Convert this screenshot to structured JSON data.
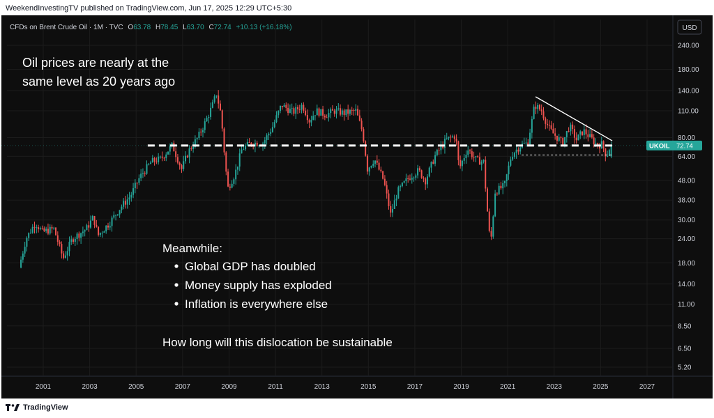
{
  "publisher_line": "WeekendInvestingTV published on TradingView.com, Jun 17, 2025 12:29 UTC+5:30",
  "footer": {
    "brand": "TradingView"
  },
  "legend": {
    "symbol": "CFDs on Brent Crude Oil · 1M · TVC",
    "o_label": "O",
    "o_value": "63.78",
    "h_label": "H",
    "h_value": "78.45",
    "l_label": "L",
    "l_value": "63.70",
    "c_label": "C",
    "c_value": "72.74",
    "change": "+10.13 (+16.18%)"
  },
  "currency_button": "USD",
  "price_tag": {
    "label": "UKOIL",
    "value": "72.74"
  },
  "annotations": {
    "headline_line1": "Oil prices are nearly at the",
    "headline_line2": "same level as 20 years ago",
    "meanwhile": "Meanwhile:",
    "bullets": [
      "Global GDP has doubled",
      "Money supply has exploded",
      "Inflation is everywhere else"
    ],
    "question": "How long will this dislocation be sustainable"
  },
  "colors": {
    "background": "#0e0e0e",
    "up": "#26a69a",
    "down": "#ef5350",
    "text": "#d1d4dc",
    "grid": "#1c1c1c",
    "tag": "#26a69a",
    "reference_line": "#ffffff"
  },
  "chart_data": {
    "type": "candlestick",
    "symbol": "UKOIL",
    "interval": "1M",
    "y_scale": "log",
    "ylim": [
      4.6,
      280
    ],
    "xlim": [
      2000.0,
      2028.0
    ],
    "y_ticks": [
      240.0,
      180.0,
      140.0,
      110.0,
      80.0,
      64.0,
      48.0,
      38.0,
      30.0,
      24.0,
      18.0,
      14.0,
      11.0,
      8.5,
      6.5,
      5.2
    ],
    "y_tick_labels": [
      "240.00",
      "180.00",
      "140.00",
      "110.00",
      "80.00",
      "64.00",
      "48.00",
      "38.00",
      "30.00",
      "24.00",
      "18.00",
      "14.00",
      "11.00",
      "8.50",
      "6.50",
      "5.20"
    ],
    "x_ticks": [
      2001,
      2003,
      2005,
      2007,
      2009,
      2011,
      2013,
      2015,
      2017,
      2019,
      2021,
      2023,
      2025,
      2027
    ],
    "last_close": 72.74,
    "reference_level": 72.74,
    "trendline": {
      "from": [
        2022.2,
        130
      ],
      "to": [
        2025.5,
        77
      ]
    },
    "support_level": {
      "from": [
        2021.6,
        65
      ],
      "to": [
        2025.5,
        65
      ]
    },
    "anchors": [
      [
        2000.0,
        17
      ],
      [
        2000.3,
        24
      ],
      [
        2000.7,
        29
      ],
      [
        2001.0,
        26
      ],
      [
        2001.5,
        27
      ],
      [
        2001.9,
        19
      ],
      [
        2002.3,
        24
      ],
      [
        2002.9,
        27
      ],
      [
        2003.2,
        31
      ],
      [
        2003.4,
        25
      ],
      [
        2003.9,
        29
      ],
      [
        2004.3,
        34
      ],
      [
        2004.8,
        40
      ],
      [
        2005.2,
        50
      ],
      [
        2005.7,
        60
      ],
      [
        2006.1,
        62
      ],
      [
        2006.6,
        73
      ],
      [
        2007.0,
        55
      ],
      [
        2007.3,
        68
      ],
      [
        2007.7,
        80
      ],
      [
        2008.0,
        95
      ],
      [
        2008.3,
        115
      ],
      [
        2008.5,
        135
      ],
      [
        2008.7,
        105
      ],
      [
        2008.9,
        55
      ],
      [
        2009.0,
        44
      ],
      [
        2009.3,
        52
      ],
      [
        2009.6,
        70
      ],
      [
        2010.0,
        75
      ],
      [
        2010.5,
        75
      ],
      [
        2010.9,
        90
      ],
      [
        2011.3,
        118
      ],
      [
        2011.8,
        108
      ],
      [
        2012.2,
        118
      ],
      [
        2012.5,
        98
      ],
      [
        2012.8,
        110
      ],
      [
        2013.2,
        105
      ],
      [
        2013.6,
        110
      ],
      [
        2014.0,
        107
      ],
      [
        2014.5,
        110
      ],
      [
        2014.8,
        85
      ],
      [
        2015.0,
        55
      ],
      [
        2015.3,
        62
      ],
      [
        2015.7,
        48
      ],
      [
        2016.0,
        32
      ],
      [
        2016.3,
        42
      ],
      [
        2016.8,
        50
      ],
      [
        2017.2,
        54
      ],
      [
        2017.5,
        48
      ],
      [
        2017.9,
        64
      ],
      [
        2018.4,
        78
      ],
      [
        2018.8,
        82
      ],
      [
        2018.95,
        55
      ],
      [
        2019.3,
        70
      ],
      [
        2019.7,
        61
      ],
      [
        2020.0,
        60
      ],
      [
        2020.15,
        35
      ],
      [
        2020.3,
        22
      ],
      [
        2020.5,
        42
      ],
      [
        2020.9,
        45
      ],
      [
        2021.2,
        65
      ],
      [
        2021.6,
        73
      ],
      [
        2021.9,
        75
      ],
      [
        2022.1,
        100
      ],
      [
        2022.2,
        118
      ],
      [
        2022.5,
        110
      ],
      [
        2022.8,
        90
      ],
      [
        2023.0,
        84
      ],
      [
        2023.4,
        75
      ],
      [
        2023.7,
        92
      ],
      [
        2024.0,
        78
      ],
      [
        2024.3,
        87
      ],
      [
        2024.6,
        80
      ],
      [
        2024.9,
        73
      ],
      [
        2025.1,
        74
      ],
      [
        2025.3,
        64
      ],
      [
        2025.46,
        72.74
      ]
    ]
  }
}
